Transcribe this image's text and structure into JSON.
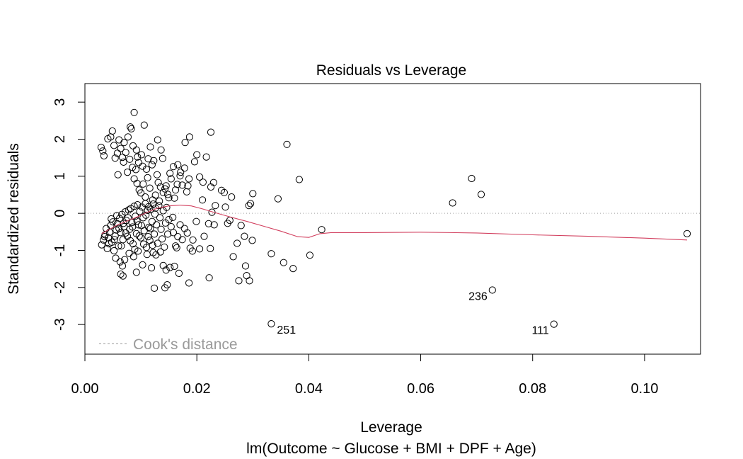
{
  "chart_data": {
    "type": "scatter",
    "title": "Residuals vs Leverage",
    "xlabel": "Leverage",
    "sublabel": "lm(Outcome ~ Glucose + BMI + DPF + Age)",
    "ylabel": "Standardized residuals",
    "xlim": [
      0.0,
      0.11
    ],
    "ylim": [
      -3.8,
      3.5
    ],
    "x_ticks": [
      0.0,
      0.02,
      0.04,
      0.06,
      0.08,
      0.1
    ],
    "x_tick_labels": [
      "0.00",
      "0.02",
      "0.04",
      "0.06",
      "0.08",
      "0.10"
    ],
    "y_ticks": [
      -3,
      -2,
      -1,
      0,
      1,
      2,
      3
    ],
    "y_tick_labels": [
      "-3",
      "-2",
      "-1",
      "0",
      "1",
      "2",
      "3"
    ],
    "reference_lines": {
      "x": 0,
      "y": 0,
      "style": "dotted",
      "color": "#a0a0a0"
    },
    "legend": {
      "label": "Cook's distance",
      "placement": "bottom-left",
      "style": "dashed",
      "color": "#9a9a9a"
    },
    "point_style": "open-circle",
    "labeled_points": [
      {
        "label": "251",
        "x": 0.0333,
        "y": -2.98
      },
      {
        "label": "236",
        "x": 0.0728,
        "y": -2.07
      },
      {
        "label": "111",
        "x": 0.0838,
        "y": -2.99
      }
    ],
    "points": [
      [
        0.0029,
        1.78
      ],
      [
        0.0032,
        1.68
      ],
      [
        0.0034,
        1.55
      ],
      [
        0.0041,
        2.01
      ],
      [
        0.0046,
        2.06
      ],
      [
        0.0049,
        2.22
      ],
      [
        0.0052,
        1.83
      ],
      [
        0.0054,
        1.49
      ],
      [
        0.0058,
        1.62
      ],
      [
        0.0061,
        1.98
      ],
      [
        0.0064,
        1.75
      ],
      [
        0.0067,
        1.51
      ],
      [
        0.007,
        1.91
      ],
      [
        0.0073,
        1.64
      ],
      [
        0.0077,
        2.06
      ],
      [
        0.008,
        1.46
      ],
      [
        0.0083,
        2.28
      ],
      [
        0.0085,
        1.24
      ],
      [
        0.0088,
        2.72
      ],
      [
        0.0092,
        1.71
      ],
      [
        0.0096,
        1.37
      ],
      [
        0.0101,
        1.58
      ],
      [
        0.0106,
        2.38
      ],
      [
        0.011,
        1.19
      ],
      [
        0.0117,
        1.79
      ],
      [
        0.0123,
        1.42
      ],
      [
        0.013,
        1.98
      ],
      [
        0.0136,
        1.71
      ],
      [
        0.0086,
        1.82
      ],
      [
        0.0091,
        1.18
      ],
      [
        0.0059,
        1.04
      ],
      [
        0.0076,
        1.11
      ],
      [
        0.0081,
        2.33
      ],
      [
        0.0113,
        1.47
      ],
      [
        0.012,
        1.31
      ],
      [
        0.0069,
        1.38
      ],
      [
        0.0094,
        1.52
      ],
      [
        0.0103,
        1.27
      ],
      [
        0.0139,
        1.48
      ],
      [
        0.0129,
        1.04
      ],
      [
        0.0088,
        0.93
      ],
      [
        0.0093,
        0.81
      ],
      [
        0.0097,
        0.63
      ],
      [
        0.01,
        0.55
      ],
      [
        0.0104,
        0.79
      ],
      [
        0.0108,
        0.44
      ],
      [
        0.0112,
        0.96
      ],
      [
        0.0116,
        0.68
      ],
      [
        0.0121,
        0.36
      ],
      [
        0.0126,
        0.49
      ],
      [
        0.0131,
        0.83
      ],
      [
        0.0135,
        0.71
      ],
      [
        0.014,
        0.56
      ],
      [
        0.0145,
        0.74
      ],
      [
        0.015,
        0.42
      ],
      [
        0.0154,
        0.93
      ],
      [
        0.0158,
        1.26
      ],
      [
        0.0162,
        0.63
      ],
      [
        0.0166,
        1.31
      ],
      [
        0.017,
        1.01
      ],
      [
        0.0174,
        0.76
      ],
      [
        0.0178,
        1.22
      ],
      [
        0.0182,
        0.58
      ],
      [
        0.0186,
        0.93
      ],
      [
        0.0165,
        0.78
      ],
      [
        0.0152,
        1.08
      ],
      [
        0.0143,
        0.66
      ],
      [
        0.0187,
        2.06
      ],
      [
        0.0196,
        1.39
      ],
      [
        0.02,
        1.58
      ],
      [
        0.0205,
        0.98
      ],
      [
        0.0211,
        0.84
      ],
      [
        0.0217,
        1.52
      ],
      [
        0.0225,
        0.71
      ],
      [
        0.023,
        0.83
      ],
      [
        0.0225,
        2.19
      ],
      [
        0.0179,
        1.91
      ],
      [
        0.0184,
        0.74
      ],
      [
        0.0171,
        1.11
      ],
      [
        0.016,
        0.41
      ],
      [
        0.0148,
        0.51
      ],
      [
        0.0133,
        0.33
      ],
      [
        0.0122,
        0.25
      ],
      [
        0.0114,
        0.18
      ],
      [
        0.003,
        -0.85
      ],
      [
        0.0033,
        -0.72
      ],
      [
        0.0036,
        -0.58
      ],
      [
        0.0038,
        -0.41
      ],
      [
        0.004,
        -0.95
      ],
      [
        0.0042,
        -0.66
      ],
      [
        0.0044,
        -0.51
      ],
      [
        0.0046,
        -0.33
      ],
      [
        0.0048,
        -0.78
      ],
      [
        0.005,
        -0.23
      ],
      [
        0.0052,
        -1.01
      ],
      [
        0.0054,
        -0.61
      ],
      [
        0.0056,
        -0.45
      ],
      [
        0.0058,
        -0.28
      ],
      [
        0.006,
        -0.88
      ],
      [
        0.0062,
        -0.14
      ],
      [
        0.0064,
        -0.52
      ],
      [
        0.0066,
        -0.03
      ],
      [
        0.0068,
        -0.71
      ],
      [
        0.007,
        -0.36
      ],
      [
        0.0072,
        0.04
      ],
      [
        0.0074,
        -0.19
      ],
      [
        0.0076,
        -0.62
      ],
      [
        0.0078,
        0.09
      ],
      [
        0.008,
        -0.43
      ],
      [
        0.0082,
        0.13
      ],
      [
        0.0084,
        -0.25
      ],
      [
        0.0086,
        -0.82
      ],
      [
        0.0088,
        0.19
      ],
      [
        0.009,
        -0.08
      ],
      [
        0.0092,
        -0.55
      ],
      [
        0.0094,
        0.23
      ],
      [
        0.0096,
        -0.31
      ],
      [
        0.0098,
        0.05
      ],
      [
        0.01,
        -0.66
      ],
      [
        0.0102,
        0.17
      ],
      [
        0.0104,
        -0.12
      ],
      [
        0.0106,
        -0.47
      ],
      [
        0.0108,
        0.26
      ],
      [
        0.011,
        -0.92
      ],
      [
        0.0112,
        0.08
      ],
      [
        0.0114,
        -0.38
      ],
      [
        0.0116,
        -0.73
      ],
      [
        0.0118,
        0.11
      ],
      [
        0.012,
        -0.22
      ],
      [
        0.0122,
        -1.06
      ],
      [
        0.0124,
        -0.56
      ],
      [
        0.0126,
        0.14
      ],
      [
        0.0128,
        -0.31
      ],
      [
        0.013,
        -0.81
      ],
      [
        0.0132,
        0.21
      ],
      [
        0.0134,
        -0.12
      ],
      [
        0.0136,
        -0.43
      ],
      [
        0.0138,
        -0.69
      ],
      [
        0.014,
        0.07
      ],
      [
        0.0142,
        -0.91
      ],
      [
        0.0144,
        -0.26
      ],
      [
        0.0146,
        0.16
      ],
      [
        0.0148,
        -0.56
      ],
      [
        0.015,
        -0.17
      ],
      [
        0.0035,
        -0.63
      ],
      [
        0.0043,
        -0.82
      ],
      [
        0.0047,
        -0.15
      ],
      [
        0.0053,
        -0.71
      ],
      [
        0.0057,
        -0.06
      ],
      [
        0.0061,
        -0.41
      ],
      [
        0.0065,
        -0.88
      ],
      [
        0.0069,
        -0.27
      ],
      [
        0.0073,
        -0.53
      ],
      [
        0.0077,
        -0.12
      ],
      [
        0.0081,
        -0.74
      ],
      [
        0.0085,
        -0.37
      ],
      [
        0.0089,
        -0.97
      ],
      [
        0.0093,
        -0.21
      ],
      [
        0.0097,
        -0.61
      ],
      [
        0.0101,
        -0.33
      ],
      [
        0.0105,
        -0.83
      ],
      [
        0.0109,
        -0.05
      ],
      [
        0.0113,
        -0.63
      ],
      [
        0.0117,
        -0.41
      ],
      [
        0.0121,
        -0.86
      ],
      [
        0.0125,
        -0.02
      ],
      [
        0.0055,
        -1.21
      ],
      [
        0.0063,
        -1.31
      ],
      [
        0.0067,
        -1.42
      ],
      [
        0.0071,
        -1.25
      ],
      [
        0.0079,
        -1.08
      ],
      [
        0.0087,
        -1.17
      ],
      [
        0.0095,
        -1.02
      ],
      [
        0.0103,
        -1.39
      ],
      [
        0.0111,
        -1.11
      ],
      [
        0.0119,
        -1.47
      ],
      [
        0.0127,
        -1.12
      ],
      [
        0.0135,
        -1.04
      ],
      [
        0.0064,
        -1.64
      ],
      [
        0.0068,
        -1.69
      ],
      [
        0.0092,
        -1.59
      ],
      [
        0.0124,
        -2.02
      ],
      [
        0.014,
        -1.41
      ],
      [
        0.0145,
        -1.53
      ],
      [
        0.0152,
        -1.46
      ],
      [
        0.016,
        -1.43
      ],
      [
        0.0168,
        -1.62
      ],
      [
        0.0143,
        -2.01
      ],
      [
        0.0147,
        -1.93
      ],
      [
        0.0154,
        -0.36
      ],
      [
        0.0158,
        -0.52
      ],
      [
        0.0162,
        -0.88
      ],
      [
        0.0166,
        -0.63
      ],
      [
        0.017,
        -0.31
      ],
      [
        0.0174,
        -0.71
      ],
      [
        0.0178,
        -0.41
      ],
      [
        0.0183,
        -0.53
      ],
      [
        0.0188,
        -0.94
      ],
      [
        0.0193,
        -0.72
      ],
      [
        0.0199,
        -0.22
      ],
      [
        0.0205,
        -0.96
      ],
      [
        0.0213,
        -0.62
      ],
      [
        0.0221,
        -0.28
      ],
      [
        0.0224,
        -0.95
      ],
      [
        0.0231,
        -0.31
      ],
      [
        0.0157,
        -0.11
      ],
      [
        0.0164,
        -0.93
      ],
      [
        0.0192,
        -1.02
      ],
      [
        0.021,
        0.36
      ],
      [
        0.0222,
        -1.74
      ],
      [
        0.0227,
        0.03
      ],
      [
        0.0186,
        -1.88
      ],
      [
        0.0233,
        0.21
      ],
      [
        0.0244,
        0.62
      ],
      [
        0.0249,
        0.56
      ],
      [
        0.0251,
        0.17
      ],
      [
        0.0255,
        -0.27
      ],
      [
        0.0259,
        -0.19
      ],
      [
        0.0262,
        0.44
      ],
      [
        0.0265,
        -1.17
      ],
      [
        0.0272,
        -0.81
      ],
      [
        0.0275,
        -1.82
      ],
      [
        0.0279,
        -0.33
      ],
      [
        0.0285,
        -0.62
      ],
      [
        0.0287,
        -1.42
      ],
      [
        0.0289,
        -1.68
      ],
      [
        0.0293,
        0.21
      ],
      [
        0.0294,
        -1.82
      ],
      [
        0.0296,
        0.26
      ],
      [
        0.0299,
        -0.73
      ],
      [
        0.03,
        0.53
      ],
      [
        0.0333,
        -1.09
      ],
      [
        0.0345,
        0.39
      ],
      [
        0.0355,
        -1.33
      ],
      [
        0.0361,
        1.86
      ],
      [
        0.0372,
        -1.49
      ],
      [
        0.0383,
        0.91
      ],
      [
        0.0402,
        -1.13
      ],
      [
        0.0423,
        -0.44
      ],
      [
        0.0657,
        0.28
      ],
      [
        0.0691,
        0.94
      ],
      [
        0.0708,
        0.51
      ],
      [
        0.1076,
        -0.55
      ],
      [
        0.0333,
        -2.98
      ],
      [
        0.0728,
        -2.07
      ],
      [
        0.0838,
        -2.99
      ]
    ],
    "smooth_line": {
      "color": "#d2405f",
      "points": [
        [
          0.003,
          -0.55
        ],
        [
          0.006,
          -0.3
        ],
        [
          0.009,
          -0.12
        ],
        [
          0.011,
          0.02
        ],
        [
          0.013,
          0.14
        ],
        [
          0.015,
          0.2
        ],
        [
          0.017,
          0.22
        ],
        [
          0.019,
          0.2
        ],
        [
          0.021,
          0.12
        ],
        [
          0.023,
          0.03
        ],
        [
          0.026,
          -0.1
        ],
        [
          0.029,
          -0.22
        ],
        [
          0.032,
          -0.35
        ],
        [
          0.035,
          -0.48
        ],
        [
          0.038,
          -0.63
        ],
        [
          0.04,
          -0.65
        ],
        [
          0.042,
          -0.55
        ],
        [
          0.044,
          -0.52
        ],
        [
          0.05,
          -0.52
        ],
        [
          0.06,
          -0.51
        ],
        [
          0.07,
          -0.53
        ],
        [
          0.08,
          -0.58
        ],
        [
          0.09,
          -0.62
        ],
        [
          0.1,
          -0.67
        ],
        [
          0.1076,
          -0.72
        ]
      ]
    }
  }
}
